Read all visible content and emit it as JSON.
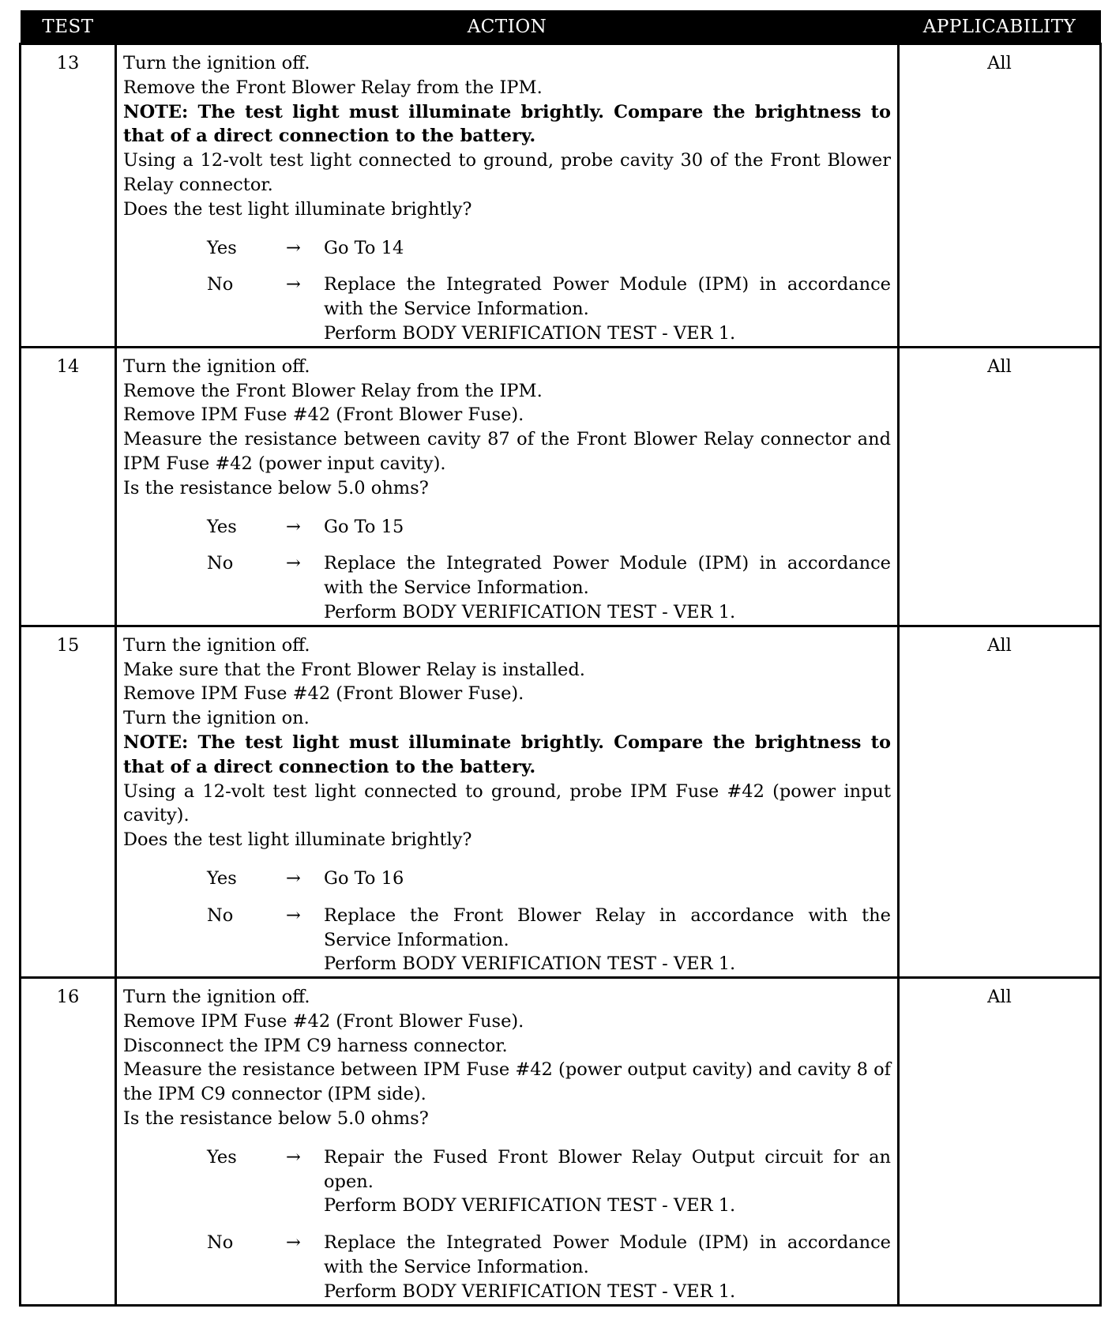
{
  "headers": {
    "test": "TEST",
    "action": "ACTION",
    "applicability": "APPLICABILITY"
  },
  "arrow": "→",
  "rows": [
    {
      "test": "13",
      "applicability": "All",
      "lines": [
        {
          "text": "Turn the ignition off.",
          "bold": false
        },
        {
          "text": "Remove the Front Blower Relay from the IPM.",
          "bold": false
        },
        {
          "text": "NOTE: The test light must illuminate brightly. Compare the brightness to that of a direct connection to the battery.",
          "bold": true
        },
        {
          "text": "Using a 12-volt test light connected to ground, probe cavity 30 of the Front Blower Relay connector.",
          "bold": false
        },
        {
          "text": "Does the test light illuminate brightly?",
          "bold": false
        }
      ],
      "branches": [
        {
          "label": "Yes",
          "result": [
            "Go To   14"
          ]
        },
        {
          "label": "No",
          "result": [
            "Replace the Integrated Power Module (IPM) in accordance with the Service Information.",
            "Perform BODY VERIFICATION TEST - VER 1."
          ]
        }
      ]
    },
    {
      "test": "14",
      "applicability": "All",
      "lines": [
        {
          "text": "Turn the ignition off.",
          "bold": false
        },
        {
          "text": "Remove the Front Blower Relay from the IPM.",
          "bold": false
        },
        {
          "text": "Remove IPM Fuse #42 (Front Blower Fuse).",
          "bold": false
        },
        {
          "text": "Measure the resistance between cavity 87 of the Front Blower Relay connector and IPM Fuse #42 (power input cavity).",
          "bold": false
        },
        {
          "text": "Is the resistance below 5.0 ohms?",
          "bold": false
        }
      ],
      "branches": [
        {
          "label": "Yes",
          "result": [
            "Go To   15"
          ]
        },
        {
          "label": "No",
          "result": [
            "Replace the Integrated Power Module (IPM) in accordance with the Service Information.",
            "Perform BODY VERIFICATION TEST - VER 1."
          ]
        }
      ]
    },
    {
      "test": "15",
      "applicability": "All",
      "lines": [
        {
          "text": "Turn the ignition off.",
          "bold": false
        },
        {
          "text": "Make sure that the Front Blower Relay is installed.",
          "bold": false
        },
        {
          "text": "Remove IPM Fuse #42 (Front Blower Fuse).",
          "bold": false
        },
        {
          "text": "Turn the ignition on.",
          "bold": false
        },
        {
          "text": "NOTE: The test light must illuminate brightly. Compare the brightness to that of a direct connection to the battery.",
          "bold": true
        },
        {
          "text": "Using a 12-volt test light connected to ground, probe IPM Fuse #42 (power input cavity).",
          "bold": false
        },
        {
          "text": "Does the test light illuminate brightly?",
          "bold": false
        }
      ],
      "branches": [
        {
          "label": "Yes",
          "result": [
            "Go To   16"
          ]
        },
        {
          "label": "No",
          "result": [
            "Replace the Front Blower Relay in accordance with the Service Information.",
            "Perform BODY VERIFICATION TEST - VER 1."
          ]
        }
      ]
    },
    {
      "test": "16",
      "applicability": "All",
      "lines": [
        {
          "text": "Turn the ignition off.",
          "bold": false
        },
        {
          "text": "Remove IPM Fuse #42 (Front Blower Fuse).",
          "bold": false
        },
        {
          "text": "Disconnect the IPM C9 harness connector.",
          "bold": false
        },
        {
          "text": "Measure the resistance between IPM Fuse #42 (power output cavity) and cavity 8 of the IPM C9 connector (IPM side).",
          "bold": false
        },
        {
          "text": "Is the resistance below 5.0 ohms?",
          "bold": false
        }
      ],
      "branches": [
        {
          "label": "Yes",
          "result": [
            "Repair the Fused Front Blower Relay Output circuit for an open.",
            "Perform BODY VERIFICATION TEST - VER 1."
          ]
        },
        {
          "label": "No",
          "result": [
            "Replace the Integrated Power Module (IPM) in accordance with the Service Information.",
            "Perform BODY VERIFICATION TEST - VER 1."
          ]
        }
      ]
    }
  ]
}
